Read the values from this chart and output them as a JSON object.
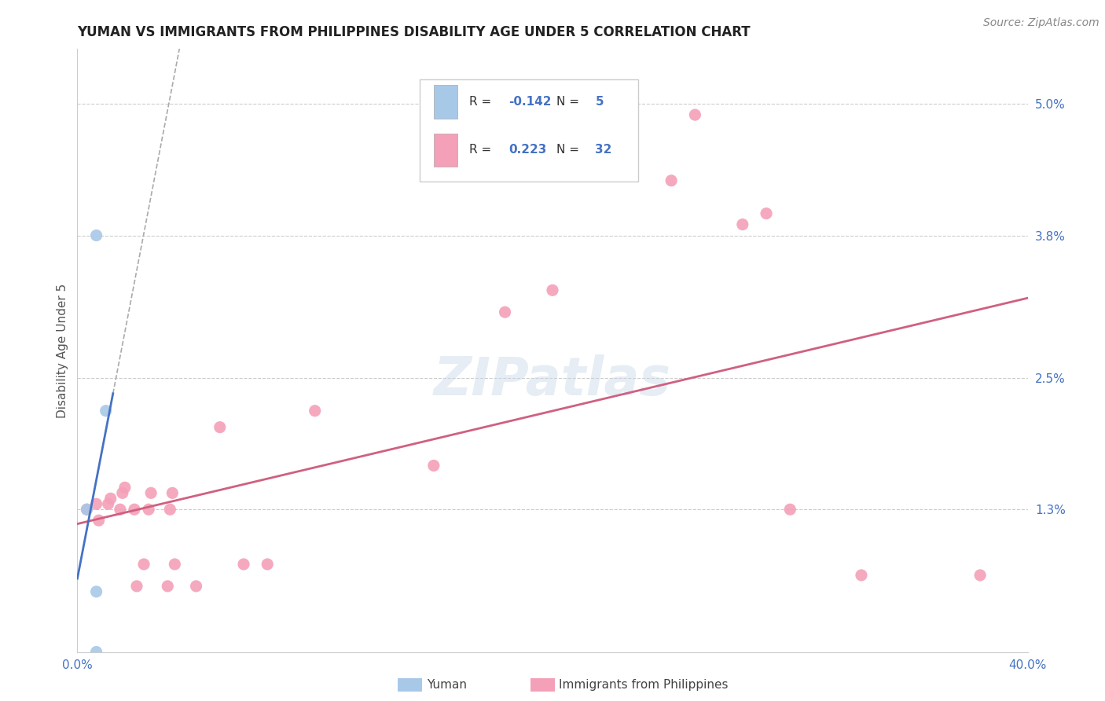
{
  "title": "YUMAN VS IMMIGRANTS FROM PHILIPPINES DISABILITY AGE UNDER 5 CORRELATION CHART",
  "source": "Source: ZipAtlas.com",
  "ylabel": "Disability Age Under 5",
  "xmin": 0.0,
  "xmax": 0.4,
  "ymin": 0.0,
  "ymax": 0.055,
  "yticks": [
    0.013,
    0.025,
    0.038,
    0.05
  ],
  "ytick_labels": [
    "1.3%",
    "2.5%",
    "3.8%",
    "5.0%"
  ],
  "xticks": [
    0.0,
    0.1,
    0.2,
    0.3,
    0.4
  ],
  "xtick_labels": [
    "0.0%",
    "",
    "",
    "",
    "40.0%"
  ],
  "r_yuman": -0.142,
  "n_yuman": 5,
  "r_philippines": 0.223,
  "n_philippines": 32,
  "color_yuman": "#a8c8e8",
  "color_yuman_line": "#4472c4",
  "color_philippines": "#f4a0b8",
  "color_philippines_line": "#d06080",
  "color_dashed": "#aaaaaa",
  "background_color": "#ffffff",
  "watermark": "ZIPatlas",
  "yuman_points": [
    [
      0.008,
      0.038
    ],
    [
      0.012,
      0.022
    ],
    [
      0.008,
      0.0055
    ],
    [
      0.008,
      0.0
    ],
    [
      0.004,
      0.013
    ]
  ],
  "philippines_points": [
    [
      0.004,
      0.013
    ],
    [
      0.008,
      0.0135
    ],
    [
      0.009,
      0.012
    ],
    [
      0.013,
      0.0135
    ],
    [
      0.014,
      0.014
    ],
    [
      0.018,
      0.013
    ],
    [
      0.019,
      0.0145
    ],
    [
      0.02,
      0.015
    ],
    [
      0.024,
      0.013
    ],
    [
      0.025,
      0.006
    ],
    [
      0.028,
      0.008
    ],
    [
      0.03,
      0.013
    ],
    [
      0.031,
      0.0145
    ],
    [
      0.038,
      0.006
    ],
    [
      0.039,
      0.013
    ],
    [
      0.04,
      0.0145
    ],
    [
      0.041,
      0.008
    ],
    [
      0.05,
      0.006
    ],
    [
      0.06,
      0.0205
    ],
    [
      0.07,
      0.008
    ],
    [
      0.08,
      0.008
    ],
    [
      0.1,
      0.022
    ],
    [
      0.15,
      0.017
    ],
    [
      0.18,
      0.031
    ],
    [
      0.2,
      0.033
    ],
    [
      0.25,
      0.043
    ],
    [
      0.26,
      0.049
    ],
    [
      0.28,
      0.039
    ],
    [
      0.29,
      0.04
    ],
    [
      0.3,
      0.013
    ],
    [
      0.33,
      0.007
    ],
    [
      0.38,
      0.007
    ]
  ],
  "title_fontsize": 12,
  "axis_label_fontsize": 11,
  "tick_fontsize": 11,
  "legend_fontsize": 11,
  "source_fontsize": 10
}
